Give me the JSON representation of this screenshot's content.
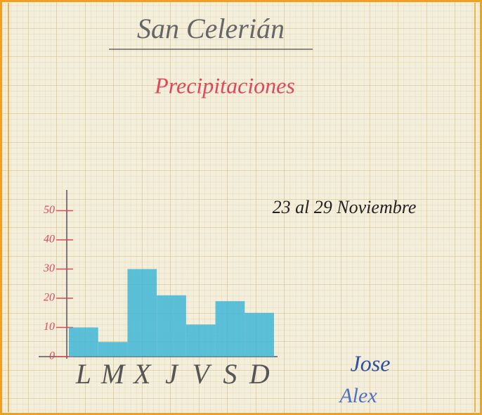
{
  "chart_data": {
    "type": "bar",
    "title": "San Celerián",
    "subtitle": "Precipitaciones",
    "annotations": [
      "23 al 29 Noviembre",
      "Jose",
      "Alex"
    ],
    "categories": [
      "L",
      "M",
      "X",
      "J",
      "V",
      "S",
      "D"
    ],
    "values": [
      10,
      5,
      30,
      21,
      11,
      19,
      15
    ],
    "color": "#3fb6d6",
    "ylim": [
      0,
      50
    ],
    "yticks": [
      0,
      10,
      20,
      30,
      40,
      50
    ]
  }
}
